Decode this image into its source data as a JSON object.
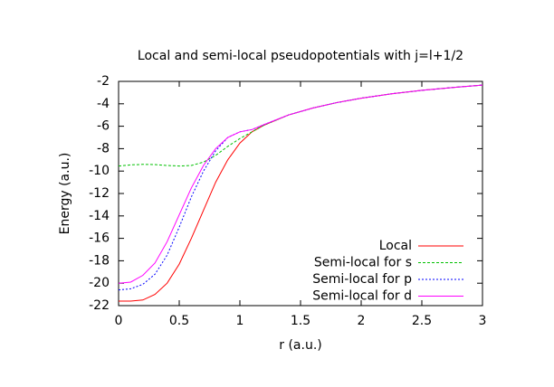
{
  "chart_data": {
    "type": "line",
    "title": "Local and semi-local pseudopotentials with j=l+1/2",
    "x_label": "r (a.u.)",
    "y_label": "Energy (a.u.)",
    "x": [
      0,
      0.1,
      0.2,
      0.3,
      0.4,
      0.5,
      0.6,
      0.7,
      0.8,
      0.9,
      1.0,
      1.1,
      1.2,
      1.4,
      1.6,
      1.8,
      2.0,
      2.25,
      2.5,
      2.75,
      3.0
    ],
    "series": [
      {
        "name": "Local",
        "color": "#ff0000",
        "dash": "none",
        "values": [
          -21.6,
          -21.6,
          -21.5,
          -21.0,
          -20.0,
          -18.3,
          -16.0,
          -13.5,
          -11.0,
          -9.0,
          -7.5,
          -6.5,
          -5.9,
          -5.0,
          -4.38,
          -3.89,
          -3.5,
          -3.11,
          -2.8,
          -2.55,
          -2.33
        ]
      },
      {
        "name": "Semi-local for s",
        "color": "#00c000",
        "dash": "3,2",
        "values": [
          -9.55,
          -9.45,
          -9.4,
          -9.42,
          -9.5,
          -9.55,
          -9.5,
          -9.2,
          -8.6,
          -7.8,
          -7.1,
          -6.5,
          -5.9,
          -5.0,
          -4.38,
          -3.89,
          -3.5,
          -3.11,
          -2.8,
          -2.55,
          -2.33
        ]
      },
      {
        "name": "Semi-local for p",
        "color": "#0000ff",
        "dash": "2,2",
        "values": [
          -20.6,
          -20.5,
          -20.1,
          -19.2,
          -17.5,
          -15.0,
          -12.3,
          -10.0,
          -8.2,
          -7.0,
          -6.5,
          -6.3,
          -5.85,
          -5.0,
          -4.38,
          -3.89,
          -3.5,
          -3.11,
          -2.8,
          -2.55,
          -2.33
        ]
      },
      {
        "name": "Semi-local for d",
        "color": "#ff00ff",
        "dash": "none",
        "values": [
          -20.0,
          -19.9,
          -19.3,
          -18.2,
          -16.3,
          -13.9,
          -11.5,
          -9.5,
          -8.0,
          -7.0,
          -6.5,
          -6.3,
          -5.85,
          -5.0,
          -4.38,
          -3.89,
          -3.5,
          -3.11,
          -2.8,
          -2.55,
          -2.33
        ]
      }
    ],
    "xlim": [
      0,
      3
    ],
    "xticks": [
      0,
      0.5,
      1,
      1.5,
      2,
      2.5,
      3
    ],
    "ylim": [
      -22,
      -2
    ],
    "yticks": [
      -22,
      -20,
      -18,
      -16,
      -14,
      -12,
      -10,
      -8,
      -6,
      -4,
      -2
    ],
    "grid": false,
    "legend_position": "lower-right"
  }
}
